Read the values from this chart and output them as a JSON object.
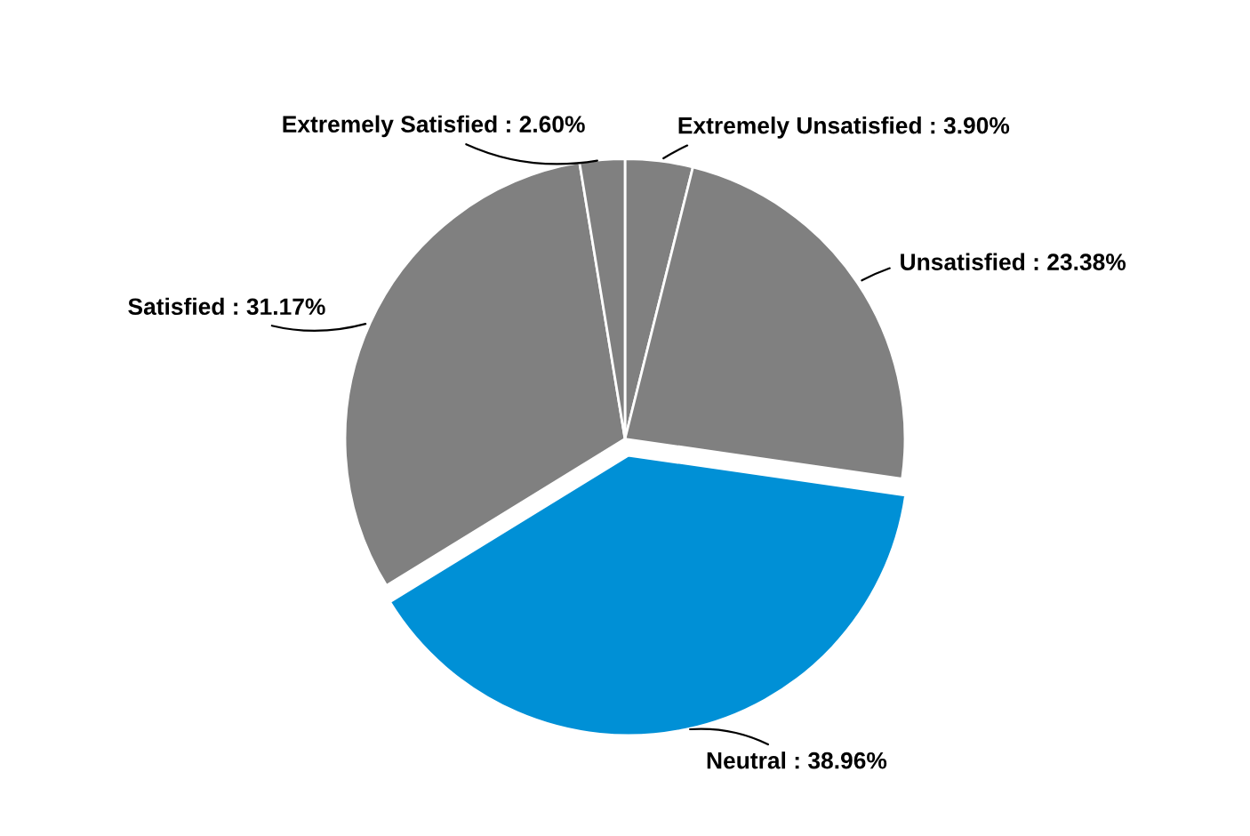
{
  "chart_data": {
    "type": "pie",
    "categories": [
      "Extremely Unsatisfied",
      "Unsatisfied",
      "Neutral",
      "Satisfied",
      "Extremely Satisfied"
    ],
    "values": [
      3.9,
      23.38,
      38.96,
      31.17,
      2.6
    ],
    "value_labels": [
      "3.90%",
      "23.38%",
      "38.96%",
      "31.17%",
      "2.60%"
    ],
    "colors": [
      "#808080",
      "#808080",
      "#0090d6",
      "#808080",
      "#808080"
    ],
    "legend": false
  }
}
